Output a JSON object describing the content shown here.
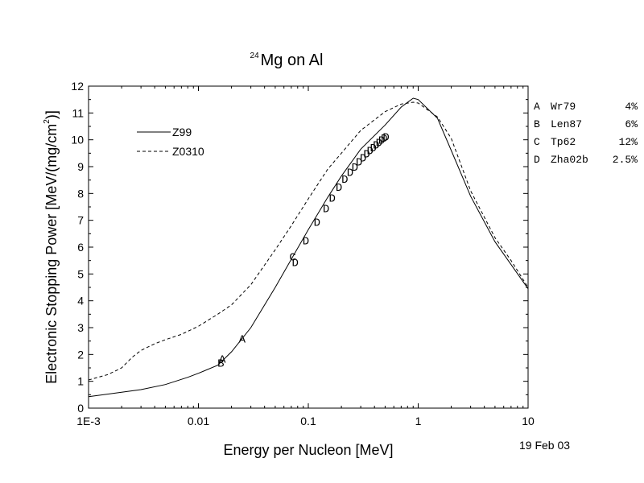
{
  "chart_data": {
    "type": "line",
    "title": {
      "superscript": "24",
      "text": "Mg on Al"
    },
    "xlabel": "Energy per Nucleon [MeV]",
    "ylabel": {
      "text": "Electronic Stopping Power [MeV/(mg/cm",
      "superscript": "2",
      "suffix": ")]"
    },
    "x_scale": "log",
    "xlim": [
      0.001,
      10
    ],
    "ylim": [
      0,
      12
    ],
    "x_ticks": [
      {
        "value": 0.001,
        "label": "1E-3"
      },
      {
        "value": 0.01,
        "label": "0.01"
      },
      {
        "value": 0.1,
        "label": "0.1"
      },
      {
        "value": 1,
        "label": "1"
      },
      {
        "value": 10,
        "label": "10"
      }
    ],
    "y_ticks": [
      0,
      1,
      2,
      3,
      4,
      5,
      6,
      7,
      8,
      9,
      10,
      11,
      12
    ],
    "grid": false,
    "date_label": "19 Feb 03",
    "legend": {
      "position": "top-left",
      "items": [
        {
          "label": "Z99",
          "style": "solid"
        },
        {
          "label": "Z0310",
          "style": "dashed"
        }
      ]
    },
    "references": [
      {
        "marker": "A",
        "source": "Wr79",
        "error": "4%"
      },
      {
        "marker": "B",
        "source": "Len87",
        "error": "6%"
      },
      {
        "marker": "C",
        "source": "Tp62",
        "error": "12%"
      },
      {
        "marker": "D",
        "source": "Zha02b",
        "error": "2.5%"
      }
    ],
    "series": [
      {
        "name": "Z99",
        "style": "solid",
        "x": [
          0.001,
          0.002,
          0.003,
          0.005,
          0.008,
          0.01,
          0.015,
          0.02,
          0.03,
          0.05,
          0.07,
          0.1,
          0.15,
          0.2,
          0.3,
          0.5,
          0.7,
          0.9,
          1.0,
          1.5,
          2,
          3,
          5,
          7,
          10
        ],
        "y": [
          0.43,
          0.59,
          0.69,
          0.88,
          1.15,
          1.3,
          1.6,
          2.1,
          3.0,
          4.5,
          5.55,
          6.65,
          7.85,
          8.65,
          9.65,
          10.55,
          11.22,
          11.55,
          11.5,
          10.8,
          9.6,
          7.9,
          6.2,
          5.35,
          4.45
        ]
      },
      {
        "name": "Z0310",
        "style": "dashed",
        "x": [
          0.001,
          0.0015,
          0.002,
          0.0025,
          0.003,
          0.004,
          0.005,
          0.007,
          0.01,
          0.015,
          0.02,
          0.03,
          0.05,
          0.07,
          0.1,
          0.15,
          0.2,
          0.3,
          0.5,
          0.7,
          0.9,
          1.0,
          1.5,
          2,
          3,
          5,
          7,
          10
        ],
        "y": [
          1.05,
          1.25,
          1.5,
          1.9,
          2.15,
          2.4,
          2.55,
          2.75,
          3.05,
          3.5,
          3.85,
          4.6,
          5.9,
          6.8,
          7.8,
          8.9,
          9.5,
          10.35,
          11.05,
          11.33,
          11.4,
          11.37,
          10.85,
          10.05,
          8.1,
          6.35,
          5.5,
          4.5
        ]
      }
    ],
    "points": [
      {
        "marker": "A",
        "x": 0.0165,
        "y": 1.85
      },
      {
        "marker": "A",
        "x": 0.025,
        "y": 2.6
      },
      {
        "marker": "B",
        "x": 0.016,
        "y": 1.7
      },
      {
        "marker": "C",
        "x": 0.072,
        "y": 5.65
      },
      {
        "marker": "D",
        "x": 0.076,
        "y": 5.45
      },
      {
        "marker": "D",
        "x": 0.095,
        "y": 6.25
      },
      {
        "marker": "D",
        "x": 0.12,
        "y": 6.95
      },
      {
        "marker": "D",
        "x": 0.145,
        "y": 7.45
      },
      {
        "marker": "D",
        "x": 0.165,
        "y": 7.85
      },
      {
        "marker": "D",
        "x": 0.19,
        "y": 8.25
      },
      {
        "marker": "D",
        "x": 0.215,
        "y": 8.55
      },
      {
        "marker": "D",
        "x": 0.24,
        "y": 8.8
      },
      {
        "marker": "D",
        "x": 0.265,
        "y": 9.0
      },
      {
        "marker": "D",
        "x": 0.29,
        "y": 9.2
      },
      {
        "marker": "D",
        "x": 0.315,
        "y": 9.35
      },
      {
        "marker": "D",
        "x": 0.34,
        "y": 9.5
      },
      {
        "marker": "D",
        "x": 0.365,
        "y": 9.62
      },
      {
        "marker": "D",
        "x": 0.39,
        "y": 9.72
      },
      {
        "marker": "D",
        "x": 0.415,
        "y": 9.82
      },
      {
        "marker": "D",
        "x": 0.44,
        "y": 9.92
      },
      {
        "marker": "D",
        "x": 0.465,
        "y": 10.0
      },
      {
        "marker": "D",
        "x": 0.49,
        "y": 10.08
      },
      {
        "marker": "D",
        "x": 0.51,
        "y": 10.13
      }
    ]
  }
}
